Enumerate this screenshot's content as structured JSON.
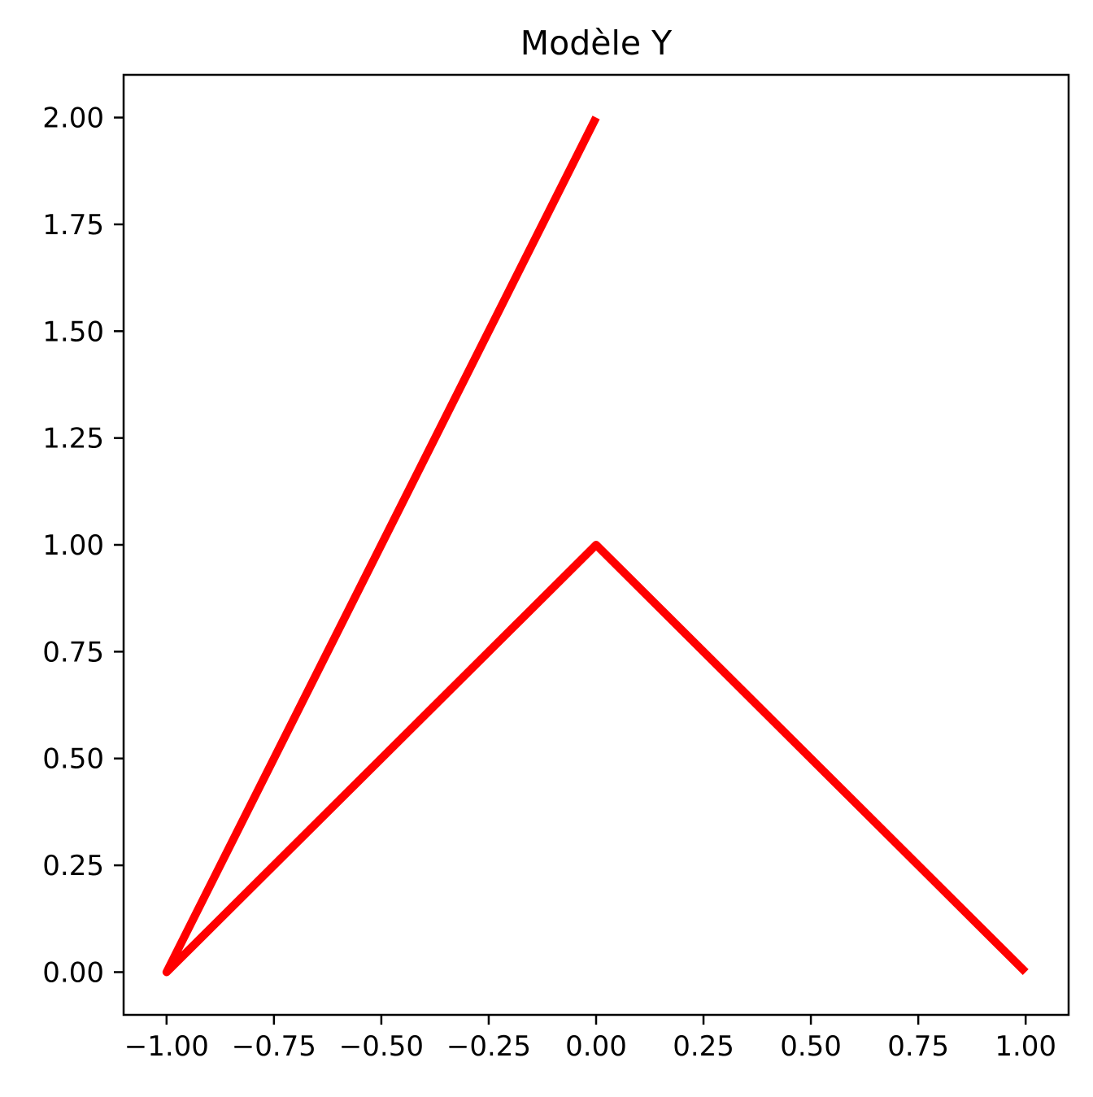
{
  "chart_data": {
    "type": "line",
    "title": "Modèle Y",
    "xlabel": "",
    "ylabel": "",
    "xlim": [
      -1.1,
      1.1
    ],
    "ylim": [
      -0.1,
      2.1
    ],
    "x_ticks": [
      -1.0,
      -0.75,
      -0.5,
      -0.25,
      0.0,
      0.25,
      0.5,
      0.75,
      1.0
    ],
    "x_tick_labels": [
      "−1.00",
      "−0.75",
      "−0.50",
      "−0.25",
      "0.00",
      "0.25",
      "0.50",
      "0.75",
      "1.00"
    ],
    "y_ticks": [
      0.0,
      0.25,
      0.5,
      0.75,
      1.0,
      1.25,
      1.5,
      1.75,
      2.0
    ],
    "y_tick_labels": [
      "0.00",
      "0.25",
      "0.50",
      "0.75",
      "1.00",
      "1.25",
      "1.50",
      "1.75",
      "2.00"
    ],
    "grid": false,
    "legend": "none",
    "series": [
      {
        "color": "#ff0000",
        "points": [
          {
            "x": 0.0,
            "y": 2.0
          },
          {
            "x": -1.0,
            "y": 0.0
          },
          {
            "x": 0.0,
            "y": 1.0
          },
          {
            "x": 1.0,
            "y": 0.0
          }
        ]
      }
    ]
  }
}
